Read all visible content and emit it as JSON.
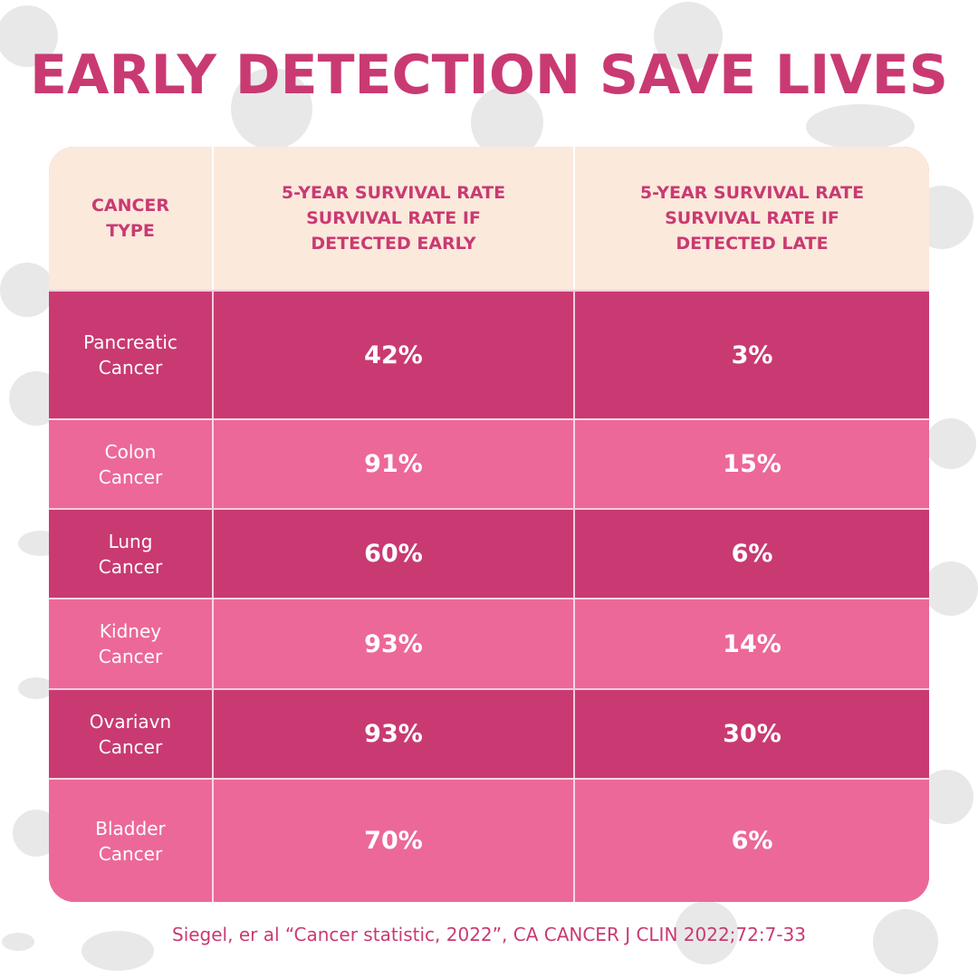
{
  "title": "EARLY DETECTION SAVE LIVES",
  "colors": {
    "accent": "#c93a72",
    "row_dark": "#c93a72",
    "row_light": "#ec6899",
    "header_bg": "#fbe9dc"
  },
  "chart_data": {
    "type": "table",
    "columns": [
      "CANCER TYPE",
      "5-YEAR SURVIVAL RATE SURVIVAL RATE IF DETECTED EARLY",
      "5-YEAR SURVIVAL RATE SURVIVAL RATE IF DETECTED LATE"
    ],
    "rows": [
      {
        "cancer_type": "Pancreatic Cancer",
        "early": "42%",
        "late": "3%"
      },
      {
        "cancer_type": "Colon Cancer",
        "early": "91%",
        "late": "15%"
      },
      {
        "cancer_type": "Lung Cancer",
        "early": "60%",
        "late": "6%"
      },
      {
        "cancer_type": "Kidney Cancer",
        "early": "93%",
        "late": "14%"
      },
      {
        "cancer_type": "Ovariavn Cancer",
        "early": "93%",
        "late": "30%"
      },
      {
        "cancer_type": "Bladder Cancer",
        "early": "70%",
        "late": "6%"
      }
    ]
  },
  "footer": "Siegel, er al “Cancer statistic, 2022”, CA CANCER J CLIN 2022;72:7-33"
}
